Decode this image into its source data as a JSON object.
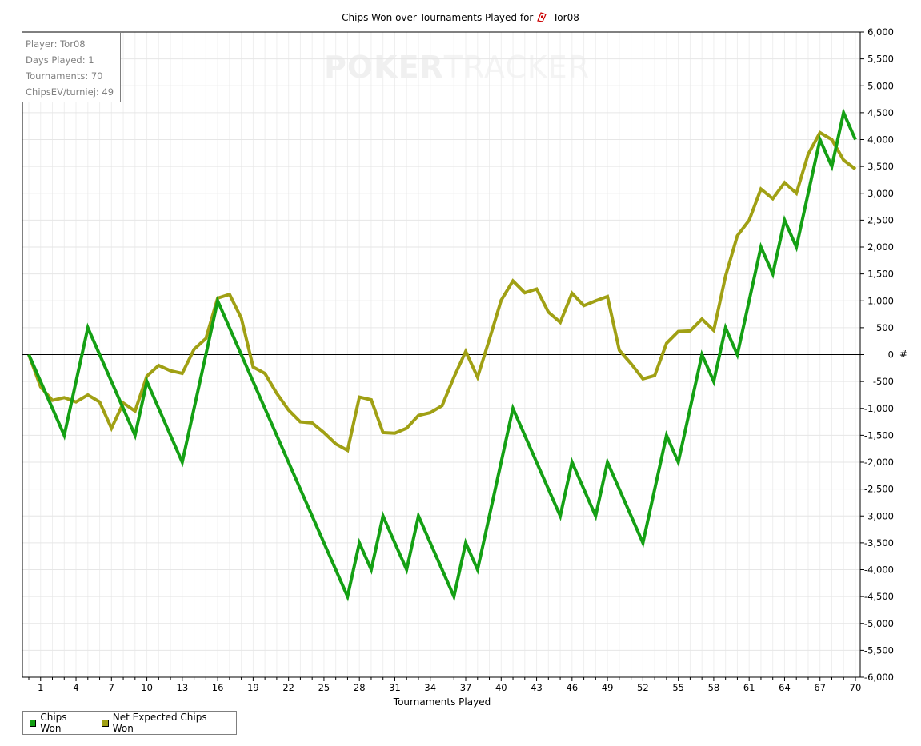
{
  "title_prefix": "Chips Won over Tournaments Played for",
  "player_name": "Tor08",
  "watermark": {
    "bold": "POKER",
    "light": "TRACKER"
  },
  "info": {
    "player": "Player: Tor08",
    "days": "Days Played: 1",
    "tournaments": "Tournaments: 70",
    "ev": "ChipsEV/turniej: 49"
  },
  "colors": {
    "chips_won": "#14a014",
    "net_expected": "#a0a014"
  },
  "chart_data": {
    "type": "line",
    "title": "Chips Won over Tournaments Played for Tor08",
    "xlabel": "Tournaments Played",
    "ylabel": "#",
    "xlim": [
      0,
      70
    ],
    "ylim": [
      -6000,
      6000
    ],
    "x_ticks": [
      1,
      4,
      7,
      10,
      13,
      16,
      19,
      22,
      25,
      28,
      31,
      34,
      37,
      40,
      43,
      46,
      49,
      52,
      55,
      58,
      61,
      64,
      67,
      70
    ],
    "y_ticks": [
      "6,000",
      "5,500",
      "5,000",
      "4,500",
      "4,000",
      "3,500",
      "3,000",
      "2,500",
      "2,000",
      "1,500",
      "1,000",
      "500",
      "0",
      "-500",
      "-1,000",
      "-1,500",
      "-2,000",
      "-2,500",
      "-3,000",
      "-3,500",
      "-4,000",
      "-4,500",
      "-5,000",
      "-5,500",
      "-6,000"
    ],
    "y_tick_values": [
      6000,
      5500,
      5000,
      4500,
      4000,
      3500,
      3000,
      2500,
      2000,
      1500,
      1000,
      500,
      0,
      -500,
      -1000,
      -1500,
      -2000,
      -2500,
      -3000,
      -3500,
      -4000,
      -4500,
      -5000,
      -5500,
      -6000
    ],
    "grid": true,
    "legend_position": "bottom-left",
    "series": [
      {
        "name": "Chips Won",
        "points": [
          [
            0,
            0
          ],
          [
            3,
            -1500
          ],
          [
            5,
            500
          ],
          [
            9,
            -1500
          ],
          [
            10,
            -500
          ],
          [
            13,
            -2000
          ],
          [
            16,
            1000
          ],
          [
            27,
            -4500
          ],
          [
            28,
            -3500
          ],
          [
            29,
            -4000
          ],
          [
            30,
            -3000
          ],
          [
            32,
            -4000
          ],
          [
            33,
            -3000
          ],
          [
            36,
            -4500
          ],
          [
            37,
            -3500
          ],
          [
            38,
            -4000
          ],
          [
            41,
            -1000
          ],
          [
            45,
            -3000
          ],
          [
            46,
            -2000
          ],
          [
            48,
            -3000
          ],
          [
            49,
            -2000
          ],
          [
            52,
            -3500
          ],
          [
            54,
            -1500
          ],
          [
            55,
            -2000
          ],
          [
            57,
            0
          ],
          [
            58,
            -500
          ],
          [
            59,
            500
          ],
          [
            60,
            0
          ],
          [
            62,
            2000
          ],
          [
            63,
            1500
          ],
          [
            64,
            2500
          ],
          [
            65,
            2000
          ],
          [
            67,
            4000
          ],
          [
            68,
            3500
          ],
          [
            69,
            4500
          ],
          [
            70,
            4000
          ]
        ]
      },
      {
        "name": "Net Expected Chips Won",
        "points": [
          [
            0,
            0
          ],
          [
            1,
            -600
          ],
          [
            2,
            -850
          ],
          [
            3,
            -800
          ],
          [
            4,
            -880
          ],
          [
            5,
            -750
          ],
          [
            6,
            -880
          ],
          [
            7,
            -1370
          ],
          [
            8,
            -900
          ],
          [
            9,
            -1050
          ],
          [
            10,
            -400
          ],
          [
            11,
            -200
          ],
          [
            12,
            -300
          ],
          [
            13,
            -350
          ],
          [
            14,
            100
          ],
          [
            15,
            300
          ],
          [
            16,
            1050
          ],
          [
            17,
            1120
          ],
          [
            18,
            680
          ],
          [
            19,
            -230
          ],
          [
            20,
            -350
          ],
          [
            21,
            -720
          ],
          [
            22,
            -1030
          ],
          [
            23,
            -1250
          ],
          [
            24,
            -1270
          ],
          [
            25,
            -1450
          ],
          [
            26,
            -1660
          ],
          [
            27,
            -1780
          ],
          [
            28,
            -790
          ],
          [
            29,
            -840
          ],
          [
            30,
            -1450
          ],
          [
            31,
            -1460
          ],
          [
            32,
            -1370
          ],
          [
            33,
            -1130
          ],
          [
            34,
            -1080
          ],
          [
            35,
            -950
          ],
          [
            36,
            -420
          ],
          [
            37,
            60
          ],
          [
            38,
            -420
          ],
          [
            39,
            280
          ],
          [
            40,
            1010
          ],
          [
            41,
            1370
          ],
          [
            42,
            1150
          ],
          [
            43,
            1220
          ],
          [
            44,
            790
          ],
          [
            45,
            600
          ],
          [
            46,
            1140
          ],
          [
            47,
            910
          ],
          [
            48,
            1000
          ],
          [
            49,
            1080
          ],
          [
            50,
            80
          ],
          [
            51,
            -170
          ],
          [
            52,
            -450
          ],
          [
            53,
            -390
          ],
          [
            54,
            210
          ],
          [
            55,
            430
          ],
          [
            56,
            440
          ],
          [
            57,
            660
          ],
          [
            58,
            450
          ],
          [
            59,
            1460
          ],
          [
            60,
            2210
          ],
          [
            61,
            2500
          ],
          [
            62,
            3080
          ],
          [
            63,
            2900
          ],
          [
            64,
            3200
          ],
          [
            65,
            3000
          ],
          [
            66,
            3730
          ],
          [
            67,
            4130
          ],
          [
            68,
            4000
          ],
          [
            69,
            3620
          ],
          [
            70,
            3450
          ]
        ]
      }
    ]
  }
}
